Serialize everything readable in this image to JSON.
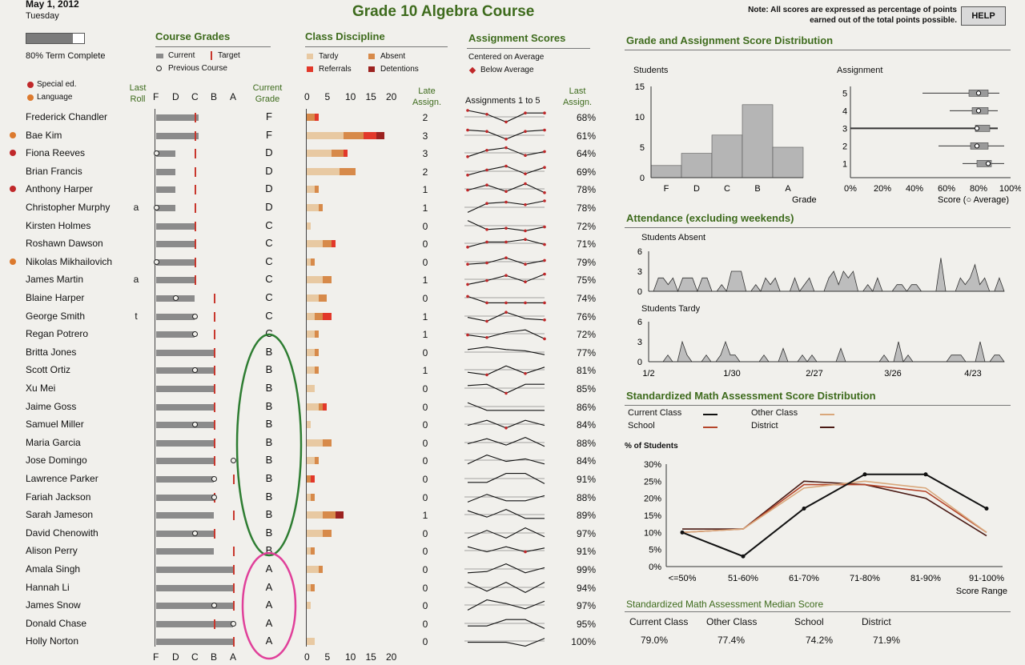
{
  "header": {
    "date": "May 1, 2012",
    "day": "Tuesday",
    "title": "Grade 10 Algebra Course",
    "note": "Note: All scores are expressed as percentage of points earned out of the total points possible.",
    "help": "HELP"
  },
  "term": {
    "label": "80% Term Complete",
    "progress": 0.8
  },
  "legend": {
    "special_ed": "Special ed.",
    "language": "Language",
    "colors": {
      "special_ed": "#c0282a",
      "language": "#dc7a2e"
    }
  },
  "col_headers": {
    "last_roll": "Last Roll",
    "current_grade": "Current Grade",
    "late_assign": "Late Assign.",
    "last_assign": "Last Assign.",
    "grade_axis": [
      "F",
      "D",
      "C",
      "B",
      "A"
    ]
  },
  "course_grades": {
    "title": "Course Grades",
    "current": "Current",
    "target": "Target",
    "previous": "Previous Course"
  },
  "class_discipline": {
    "title": "Class Discipline",
    "tardy": "Tardy",
    "absent": "Absent",
    "referrals": "Referrals",
    "detentions": "Detentions",
    "axis": [
      "0",
      "5",
      "10",
      "15",
      "20"
    ],
    "colors": {
      "tardy": "#e8c9a2",
      "absent": "#d78a4a",
      "referrals": "#e2382a",
      "detentions": "#9c2220"
    }
  },
  "assignment_scores": {
    "title": "Assignment Scores",
    "centered": "Centered on Average",
    "below": "Below Average",
    "header": "Assignments 1 to 5"
  },
  "students": [
    {
      "name": "Frederick Chandler",
      "flag": "",
      "roll": "",
      "grade": "F",
      "late": "2",
      "last": "68%",
      "cur": 2.2,
      "tgt": 2.0,
      "prev": null,
      "tardy": 0,
      "absent": 2,
      "ref": 1,
      "det": 0,
      "asg": [
        5,
        2,
        -4,
        3,
        3
      ],
      "below": [
        1,
        1,
        1,
        1,
        1
      ]
    },
    {
      "name": "Bae Kim",
      "flag": "language",
      "roll": "",
      "grade": "F",
      "late": "3",
      "last": "61%",
      "cur": 2.2,
      "tgt": 2.0,
      "prev": null,
      "tardy": 9,
      "absent": 5,
      "ref": 3,
      "det": 2,
      "asg": [
        4,
        3,
        -3,
        3,
        4
      ],
      "below": [
        1,
        1,
        1,
        1,
        1
      ]
    },
    {
      "name": "Fiona Reeves",
      "flag": "special",
      "roll": "",
      "grade": "D",
      "late": "3",
      "last": "64%",
      "cur": 1.0,
      "tgt": 2.0,
      "prev": 0.0,
      "tardy": 6,
      "absent": 3,
      "ref": 1,
      "det": 0,
      "asg": [
        -3,
        2,
        4,
        -2,
        1
      ],
      "below": [
        1,
        1,
        1,
        1,
        1
      ]
    },
    {
      "name": "Brian Francis",
      "flag": "",
      "roll": "",
      "grade": "D",
      "late": "2",
      "last": "69%",
      "cur": 1.0,
      "tgt": 2.0,
      "prev": null,
      "tardy": 8,
      "absent": 4,
      "ref": 0,
      "det": 0,
      "asg": [
        -3,
        1,
        4,
        -2,
        3
      ],
      "below": [
        1,
        1,
        1,
        1,
        1
      ]
    },
    {
      "name": "Anthony Harper",
      "flag": "special",
      "roll": "",
      "grade": "D",
      "late": "1",
      "last": "78%",
      "cur": 1.0,
      "tgt": 2.0,
      "prev": null,
      "tardy": 2,
      "absent": 1,
      "ref": 0,
      "det": 0,
      "asg": [
        -1,
        3,
        -2,
        4,
        -3
      ],
      "below": [
        1,
        1,
        1,
        1,
        1
      ]
    },
    {
      "name": "Christopher Murphy",
      "flag": "",
      "roll": "a",
      "grade": "D",
      "late": "1",
      "last": "78%",
      "cur": 1.0,
      "tgt": 2.0,
      "prev": 0.0,
      "tardy": 3,
      "absent": 1,
      "ref": 0,
      "det": 0,
      "asg": [
        -4,
        3,
        4,
        2,
        5
      ],
      "below": [
        0,
        1,
        1,
        1,
        1
      ]
    },
    {
      "name": "Kirsten Holmes",
      "flag": "",
      "roll": "",
      "grade": "C",
      "late": "0",
      "last": "72%",
      "cur": 2.0,
      "tgt": 2.0,
      "prev": null,
      "tardy": 1,
      "absent": 0,
      "ref": 0,
      "det": 0,
      "asg": [
        4,
        -3,
        -2,
        -4,
        -1
      ],
      "below": [
        0,
        1,
        1,
        1,
        1
      ]
    },
    {
      "name": "Roshawn Dawson",
      "flag": "",
      "roll": "",
      "grade": "C",
      "late": "0",
      "last": "71%",
      "cur": 2.0,
      "tgt": 2.0,
      "prev": null,
      "tardy": 4,
      "absent": 2,
      "ref": 1,
      "det": 0,
      "asg": [
        -3,
        1,
        1,
        3,
        -1
      ],
      "below": [
        1,
        1,
        1,
        1,
        1
      ]
    },
    {
      "name": "Nikolas Mikhailovich",
      "flag": "language",
      "roll": "",
      "grade": "C",
      "late": "0",
      "last": "79%",
      "cur": 2.0,
      "tgt": 2.0,
      "prev": 0.0,
      "tardy": 1,
      "absent": 1,
      "ref": 0,
      "det": 0,
      "asg": [
        -2,
        -1,
        3,
        -2,
        1
      ],
      "below": [
        1,
        1,
        1,
        1,
        1
      ]
    },
    {
      "name": "James Martin",
      "flag": "",
      "roll": "a",
      "grade": "C",
      "late": "1",
      "last": "75%",
      "cur": 2.0,
      "tgt": 2.0,
      "prev": null,
      "tardy": 4,
      "absent": 2,
      "ref": 0,
      "det": 0,
      "asg": [
        -4,
        -1,
        3,
        -2,
        4
      ],
      "below": [
        1,
        1,
        1,
        1,
        1
      ]
    },
    {
      "name": "Blaine Harper",
      "flag": "",
      "roll": "",
      "grade": "C",
      "late": "0",
      "last": "74%",
      "cur": 2.0,
      "tgt": 3.0,
      "prev": 1.0,
      "tardy": 3,
      "absent": 2,
      "ref": 0,
      "det": 0,
      "asg": [
        1,
        -4,
        -4,
        -4,
        -4
      ],
      "below": [
        1,
        1,
        1,
        1,
        1
      ]
    },
    {
      "name": "George Smith",
      "flag": "",
      "roll": "t",
      "grade": "C",
      "late": "1",
      "last": "76%",
      "cur": 2.0,
      "tgt": 3.0,
      "prev": 2.0,
      "tardy": 2,
      "absent": 2,
      "ref": 2,
      "det": 0,
      "asg": [
        -1,
        -4,
        3,
        -2,
        -3
      ],
      "below": [
        0,
        1,
        1,
        0,
        1
      ]
    },
    {
      "name": "Regan Potrero",
      "flag": "",
      "roll": "",
      "grade": "C",
      "late": "1",
      "last": "72%",
      "cur": 2.0,
      "tgt": 3.0,
      "prev": 2.0,
      "tardy": 2,
      "absent": 1,
      "ref": 0,
      "det": 0,
      "asg": [
        -1,
        -3,
        1,
        3,
        -4
      ],
      "below": [
        1,
        1,
        0,
        0,
        1
      ]
    },
    {
      "name": "Britta Jones",
      "flag": "",
      "roll": "",
      "grade": "B",
      "late": "0",
      "last": "77%",
      "cur": 3.0,
      "tgt": 3.0,
      "prev": null,
      "tardy": 2,
      "absent": 1,
      "ref": 0,
      "det": 0,
      "asg": [
        2,
        4,
        2,
        1,
        -2
      ],
      "below": [
        0,
        0,
        0,
        0,
        0
      ]
    },
    {
      "name": "Scott Ortiz",
      "flag": "",
      "roll": "",
      "grade": "B",
      "late": "1",
      "last": "81%",
      "cur": 3.0,
      "tgt": 3.0,
      "prev": 2.0,
      "tardy": 2,
      "absent": 1,
      "ref": 0,
      "det": 0,
      "asg": [
        -2,
        -4,
        3,
        -3,
        2
      ],
      "below": [
        0,
        1,
        0,
        1,
        0
      ]
    },
    {
      "name": "Xu Mei",
      "flag": "",
      "roll": "",
      "grade": "B",
      "late": "0",
      "last": "85%",
      "cur": 3.0,
      "tgt": 3.0,
      "prev": null,
      "tardy": 2,
      "absent": 0,
      "ref": 0,
      "det": 0,
      "asg": [
        2,
        3,
        -4,
        3,
        3
      ],
      "below": [
        0,
        0,
        1,
        0,
        0
      ]
    },
    {
      "name": "Jaime Goss",
      "flag": "",
      "roll": "",
      "grade": "B",
      "late": "0",
      "last": "86%",
      "cur": 3.0,
      "tgt": 3.0,
      "prev": null,
      "tardy": 3,
      "absent": 1,
      "ref": 1,
      "det": 0,
      "asg": [
        3,
        -3,
        -3,
        -3,
        -3
      ],
      "below": [
        0,
        0,
        0,
        0,
        0
      ]
    },
    {
      "name": "Samuel Miller",
      "flag": "",
      "roll": "",
      "grade": "B",
      "late": "0",
      "last": "84%",
      "cur": 3.0,
      "tgt": 3.0,
      "prev": 2.0,
      "tardy": 1,
      "absent": 0,
      "ref": 0,
      "det": 0,
      "asg": [
        -1,
        3,
        -3,
        3,
        -1
      ],
      "below": [
        0,
        0,
        1,
        0,
        0
      ]
    },
    {
      "name": "Maria Garcia",
      "flag": "",
      "roll": "",
      "grade": "B",
      "late": "0",
      "last": "88%",
      "cur": 3.0,
      "tgt": 3.0,
      "prev": null,
      "tardy": 4,
      "absent": 2,
      "ref": 0,
      "det": 0,
      "asg": [
        -1,
        3,
        -2,
        4,
        -3
      ],
      "below": [
        0,
        0,
        0,
        0,
        0
      ]
    },
    {
      "name": "Jose Domingo",
      "flag": "",
      "roll": "",
      "grade": "B",
      "late": "0",
      "last": "84%",
      "cur": 3.0,
      "tgt": 3.0,
      "prev": 4.0,
      "tardy": 2,
      "absent": 1,
      "ref": 0,
      "det": 0,
      "asg": [
        -3,
        4,
        -1,
        1,
        -3
      ],
      "below": [
        0,
        0,
        0,
        0,
        0
      ]
    },
    {
      "name": "Lawrence Parker",
      "flag": "",
      "roll": "",
      "grade": "B",
      "late": "0",
      "last": "91%",
      "cur": 3.0,
      "tgt": 4.0,
      "prev": 3.0,
      "tardy": 0,
      "absent": 1,
      "ref": 1,
      "det": 0,
      "asg": [
        -3,
        -3,
        4,
        4,
        -4
      ],
      "below": [
        0,
        0,
        0,
        0,
        0
      ]
    },
    {
      "name": "Fariah Jackson",
      "flag": "",
      "roll": "",
      "grade": "B",
      "late": "0",
      "last": "88%",
      "cur": 3.0,
      "tgt": 3.0,
      "prev": 3.0,
      "tardy": 1,
      "absent": 1,
      "ref": 0,
      "det": 0,
      "asg": [
        -4,
        2,
        -3,
        -3,
        1
      ],
      "below": [
        0,
        0,
        0,
        0,
        0
      ]
    },
    {
      "name": "Sarah Jameson",
      "flag": "",
      "roll": "",
      "grade": "B",
      "late": "1",
      "last": "89%",
      "cur": 3.0,
      "tgt": 4.0,
      "prev": null,
      "tardy": 4,
      "absent": 3,
      "ref": 0,
      "det": 2,
      "asg": [
        3,
        -2,
        4,
        -3,
        -3
      ],
      "below": [
        0,
        0,
        0,
        0,
        0
      ]
    },
    {
      "name": "David Chenowith",
      "flag": "",
      "roll": "",
      "grade": "B",
      "late": "0",
      "last": "97%",
      "cur": 3.0,
      "tgt": 3.0,
      "prev": 2.0,
      "tardy": 4,
      "absent": 2,
      "ref": 0,
      "det": 0,
      "asg": [
        -4,
        2,
        -4,
        4,
        -3
      ],
      "below": [
        0,
        0,
        0,
        0,
        0
      ]
    },
    {
      "name": "Alison Perry",
      "flag": "",
      "roll": "",
      "grade": "B",
      "late": "0",
      "last": "91%",
      "cur": 3.0,
      "tgt": 4.0,
      "prev": null,
      "tardy": 1,
      "absent": 1,
      "ref": 0,
      "det": 0,
      "asg": [
        3,
        -1,
        3,
        -1,
        2
      ],
      "below": [
        0,
        0,
        0,
        1,
        0
      ]
    },
    {
      "name": "Amala Singh",
      "flag": "",
      "roll": "",
      "grade": "A",
      "late": "0",
      "last": "99%",
      "cur": 4.0,
      "tgt": 4.0,
      "prev": null,
      "tardy": 3,
      "absent": 1,
      "ref": 0,
      "det": 0,
      "asg": [
        -3,
        -2,
        4,
        -3,
        1
      ],
      "below": [
        0,
        0,
        0,
        0,
        0
      ]
    },
    {
      "name": "Hannah Li",
      "flag": "",
      "roll": "",
      "grade": "A",
      "late": "0",
      "last": "94%",
      "cur": 4.0,
      "tgt": 4.0,
      "prev": null,
      "tardy": 1,
      "absent": 1,
      "ref": 0,
      "det": 0,
      "asg": [
        4,
        -3,
        4,
        -4,
        4
      ],
      "below": [
        0,
        0,
        0,
        0,
        0
      ]
    },
    {
      "name": "James Snow",
      "flag": "",
      "roll": "",
      "grade": "A",
      "late": "0",
      "last": "97%",
      "cur": 4.0,
      "tgt": 4.0,
      "prev": 3.0,
      "tardy": 1,
      "absent": 0,
      "ref": 0,
      "det": 0,
      "asg": [
        -4,
        4,
        1,
        -3,
        3
      ],
      "below": [
        0,
        0,
        0,
        0,
        0
      ]
    },
    {
      "name": "Donald Chase",
      "flag": "",
      "roll": "",
      "grade": "A",
      "late": "0",
      "last": "95%",
      "cur": 4.0,
      "tgt": 3.0,
      "prev": 4.0,
      "tardy": 0,
      "absent": 0,
      "ref": 0,
      "det": 0,
      "asg": [
        -2,
        -2,
        3,
        3,
        -4
      ],
      "below": [
        0,
        0,
        0,
        0,
        0
      ]
    },
    {
      "name": "Holly Norton",
      "flag": "",
      "roll": "",
      "grade": "A",
      "late": "0",
      "last": "100%",
      "cur": 4.0,
      "tgt": 4.0,
      "prev": null,
      "tardy": 2,
      "absent": 0,
      "ref": 0,
      "det": 0,
      "asg": [
        -1,
        -1,
        -1,
        -4,
        2
      ],
      "below": [
        0,
        0,
        0,
        0,
        0
      ]
    }
  ],
  "grade_dist": {
    "title": "Grade and Assignment Score Distribution",
    "students_label": "Students",
    "assignment_label": "Assignment",
    "grade_axis_label": "Grade",
    "score_axis_label": "Score (○ Average)",
    "y_ticks": [
      "15",
      "10",
      "5",
      "0"
    ],
    "x_ticks": [
      "0%",
      "20%",
      "40%",
      "60%",
      "80%",
      "100%"
    ]
  },
  "attendance": {
    "title": "Attendance (excluding weekends)",
    "absent_label": "Students Absent",
    "tardy_label": "Students Tardy",
    "y_ticks": [
      "6",
      "3",
      "0"
    ],
    "x_ticks": [
      "1/2",
      "1/30",
      "2/27",
      "3/26",
      "4/23"
    ]
  },
  "sma": {
    "title": "Standardized Math Assessment Score Distribution",
    "current_class": "Current Class",
    "other_class": "Other Class",
    "school": "School",
    "district": "District",
    "y_title": "% of Students",
    "y_ticks": [
      "30%",
      "25%",
      "20%",
      "15%",
      "10%",
      "5%",
      "0%"
    ],
    "x_title": "Score Range",
    "colors": {
      "current": "#111111",
      "other": "#d9a77b",
      "school": "#b5452a",
      "district": "#4a1a14"
    }
  },
  "median": {
    "title": "Standardized Math Assessment Median Score",
    "labels": [
      "Current Class",
      "Other Class",
      "School",
      "District"
    ],
    "values": [
      "79.0%",
      "77.4%",
      "74.2%",
      "71.9%"
    ]
  },
  "chart_data": [
    {
      "type": "bar",
      "title": "",
      "categories": [
        "F",
        "D",
        "C",
        "B",
        "A"
      ],
      "values": [
        2,
        4,
        7,
        12,
        5
      ],
      "xlabel": "Grade",
      "ylabel": "Students",
      "ylim": [
        0,
        15
      ]
    },
    {
      "type": "line",
      "title": "Standardized Math Assessment Score Distribution",
      "categories": [
        "<=50%",
        "51-60%",
        "61-70%",
        "71-80%",
        "81-90%",
        "91-100%"
      ],
      "xlabel": "Score Range",
      "ylabel": "% of Students",
      "ylim": [
        0,
        30
      ],
      "series": [
        {
          "name": "Current Class",
          "values": [
            10,
            3,
            17,
            27,
            27,
            17
          ]
        },
        {
          "name": "Other Class",
          "values": [
            10,
            11,
            23,
            25,
            23,
            10
          ]
        },
        {
          "name": "School",
          "values": [
            10,
            11,
            24,
            24,
            22,
            10
          ]
        },
        {
          "name": "District",
          "values": [
            11,
            11,
            25,
            24,
            20,
            9
          ]
        }
      ]
    },
    {
      "type": "area",
      "title": "",
      "ylabel": "Students Absent",
      "x_ticks": [
        "1/2",
        "1/30",
        "2/27",
        "3/26",
        "4/23"
      ],
      "ylim": [
        0,
        6
      ],
      "values": [
        0,
        0,
        2,
        2,
        1,
        2,
        0,
        2,
        2,
        2,
        0,
        2,
        2,
        0,
        0,
        1,
        0,
        3,
        3,
        3,
        0,
        0,
        1,
        0,
        2,
        1,
        2,
        0,
        0,
        0,
        2,
        0,
        1,
        2,
        0,
        0,
        0,
        2,
        3,
        1,
        3,
        2,
        3,
        0,
        0,
        1,
        0,
        2,
        0,
        0,
        0,
        1,
        1,
        0,
        1,
        1,
        0,
        0,
        0,
        0,
        5,
        0,
        0,
        0,
        2,
        1,
        2,
        4,
        1,
        2,
        0,
        0,
        2,
        0
      ]
    },
    {
      "type": "area",
      "title": "",
      "ylabel": "Students Tardy",
      "x_ticks": [
        "1/2",
        "1/30",
        "2/27",
        "3/26",
        "4/23"
      ],
      "ylim": [
        0,
        6
      ],
      "values": [
        0,
        0,
        0,
        0,
        1,
        0,
        0,
        3,
        1,
        0,
        0,
        0,
        1,
        0,
        0,
        1,
        3,
        1,
        1,
        0,
        0,
        0,
        0,
        0,
        1,
        0,
        0,
        0,
        2,
        0,
        0,
        0,
        1,
        0,
        1,
        0,
        0,
        0,
        0,
        0,
        2,
        0,
        0,
        0,
        0,
        0,
        0,
        0,
        0,
        1,
        0,
        0,
        3,
        0,
        1,
        0,
        0,
        0,
        0,
        0,
        0,
        0,
        0,
        1,
        1,
        1,
        0,
        0,
        0,
        3,
        0,
        0,
        1,
        1,
        0
      ]
    }
  ]
}
